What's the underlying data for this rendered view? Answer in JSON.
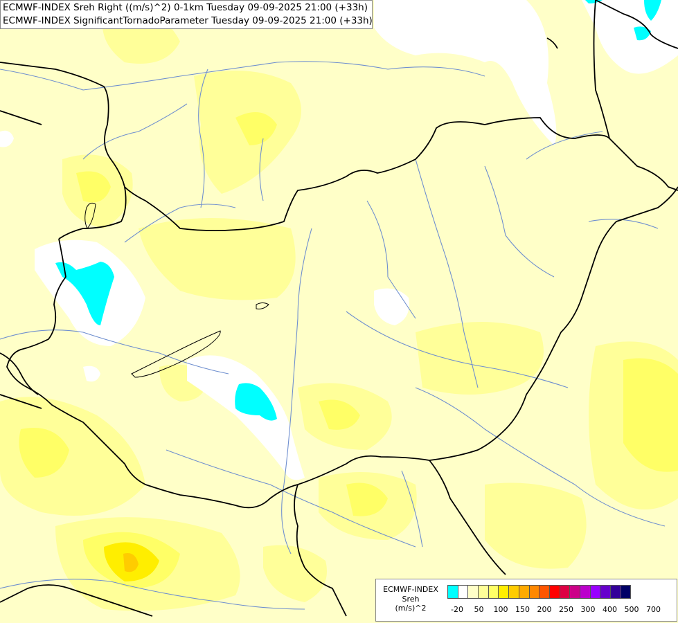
{
  "title": {
    "line1": "ECMWF-INDEX Sreh Right ((m/s)^2) 0-1km Tuesday 09-09-2025 21:00 (+33h)",
    "line2": "ECMWF-INDEX SignificantTornadoParameter Tuesday 09-09-2025 21:00 (+33h)"
  },
  "legend": {
    "line1": "ECMWF-INDEX",
    "line2": "Sreh",
    "line3": "(m/s)^2",
    "colors": [
      "#00ffff",
      "#ffffff",
      "#ffffc8",
      "#ffff99",
      "#ffff66",
      "#ffee00",
      "#ffcc00",
      "#ffaa00",
      "#ff8800",
      "#ff5500",
      "#ff0000",
      "#dd0044",
      "#cc0088",
      "#bb00cc",
      "#9900ff",
      "#6600cc",
      "#330099",
      "#000066"
    ],
    "ticks": [
      "-20",
      "50",
      "100",
      "150",
      "200",
      "250",
      "300",
      "400",
      "500",
      "700"
    ]
  },
  "map": {
    "fill_colors": {
      "background": "#ffffc8",
      "light_yellow": "#ffff99",
      "yellow": "#ffff66",
      "gold": "#ffee00",
      "orange": "#ffcc00",
      "white": "#ffffff",
      "cyan": "#00ffff",
      "border": "#000000",
      "river": "#6f8fcf"
    }
  }
}
